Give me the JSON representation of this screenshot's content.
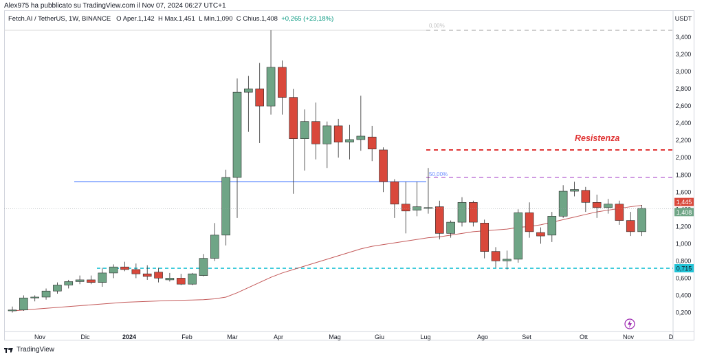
{
  "publisher_line": "Alex975 ha pubblicato su TradingView.com il Nov 07, 2024 06:27 UTC+1",
  "symbol": {
    "title": "Fetch.AI / TetherUS, 1W, BINANCE",
    "open_label": "O",
    "open": "Aper.1,142",
    "high_label": "H",
    "high": "Max.1,451",
    "low_label": "L",
    "low": "Min.1,090",
    "close_label": "C",
    "close": "Chius.1,408",
    "change": "+0,265 (+23,18%)"
  },
  "footer": {
    "brand": "TradingView"
  },
  "colors": {
    "up": "#6fa586",
    "down": "#d9483b",
    "ema": "#c45a5a",
    "hline": "#2962ff",
    "support": "#22c3d6",
    "resistance": "#e03535",
    "fib": "#c07ad8"
  },
  "chart_data": {
    "type": "candlestick",
    "currency": "USDT",
    "ylim": [
      0.1,
      3.6
    ],
    "y_ticks": [
      "3,400",
      "3,200",
      "3,000",
      "2,800",
      "2,600",
      "2,400",
      "2,200",
      "2,000",
      "1,800",
      "1,600",
      "1,400",
      "1,200",
      "1,000",
      "0,800",
      "0,600",
      "0,400",
      "0,200"
    ],
    "x_labels": [
      "Nov",
      "Dic",
      "2024",
      "Feb",
      "Mar",
      "Apr",
      "Mag",
      "Giu",
      "Lug",
      "Ago",
      "Set",
      "Ott",
      "Nov",
      "D"
    ],
    "candles": [
      {
        "o": 0.22,
        "h": 0.27,
        "l": 0.2,
        "c": 0.23
      },
      {
        "o": 0.23,
        "h": 0.4,
        "l": 0.22,
        "c": 0.37
      },
      {
        "o": 0.37,
        "h": 0.4,
        "l": 0.33,
        "c": 0.38
      },
      {
        "o": 0.38,
        "h": 0.48,
        "l": 0.35,
        "c": 0.45
      },
      {
        "o": 0.45,
        "h": 0.55,
        "l": 0.42,
        "c": 0.52
      },
      {
        "o": 0.52,
        "h": 0.58,
        "l": 0.48,
        "c": 0.56
      },
      {
        "o": 0.56,
        "h": 0.63,
        "l": 0.53,
        "c": 0.58
      },
      {
        "o": 0.58,
        "h": 0.63,
        "l": 0.53,
        "c": 0.55
      },
      {
        "o": 0.55,
        "h": 0.72,
        "l": 0.5,
        "c": 0.66
      },
      {
        "o": 0.66,
        "h": 0.76,
        "l": 0.6,
        "c": 0.73
      },
      {
        "o": 0.73,
        "h": 0.79,
        "l": 0.68,
        "c": 0.7
      },
      {
        "o": 0.7,
        "h": 0.77,
        "l": 0.6,
        "c": 0.65
      },
      {
        "o": 0.65,
        "h": 0.75,
        "l": 0.58,
        "c": 0.62
      },
      {
        "o": 0.67,
        "h": 0.72,
        "l": 0.55,
        "c": 0.6
      },
      {
        "o": 0.58,
        "h": 0.66,
        "l": 0.56,
        "c": 0.6
      },
      {
        "o": 0.6,
        "h": 0.65,
        "l": 0.52,
        "c": 0.53
      },
      {
        "o": 0.53,
        "h": 0.66,
        "l": 0.52,
        "c": 0.65
      },
      {
        "o": 0.63,
        "h": 0.88,
        "l": 0.62,
        "c": 0.83
      },
      {
        "o": 0.83,
        "h": 1.24,
        "l": 0.8,
        "c": 1.1
      },
      {
        "o": 1.1,
        "h": 1.86,
        "l": 0.98,
        "c": 1.77
      },
      {
        "o": 1.77,
        "h": 2.92,
        "l": 1.3,
        "c": 2.76
      },
      {
        "o": 2.76,
        "h": 2.95,
        "l": 2.3,
        "c": 2.8
      },
      {
        "o": 2.8,
        "h": 3.1,
        "l": 2.17,
        "c": 2.6
      },
      {
        "o": 2.6,
        "h": 3.48,
        "l": 2.5,
        "c": 3.05
      },
      {
        "o": 3.05,
        "h": 3.13,
        "l": 2.5,
        "c": 2.7
      },
      {
        "o": 2.7,
        "h": 2.8,
        "l": 1.58,
        "c": 2.22
      },
      {
        "o": 2.22,
        "h": 2.56,
        "l": 1.85,
        "c": 2.42
      },
      {
        "o": 2.42,
        "h": 2.64,
        "l": 1.98,
        "c": 2.16
      },
      {
        "o": 2.16,
        "h": 2.42,
        "l": 1.88,
        "c": 2.37
      },
      {
        "o": 2.37,
        "h": 2.45,
        "l": 2.0,
        "c": 2.18
      },
      {
        "o": 2.18,
        "h": 2.38,
        "l": 1.98,
        "c": 2.21
      },
      {
        "o": 2.21,
        "h": 2.72,
        "l": 2.08,
        "c": 2.25
      },
      {
        "o": 2.24,
        "h": 2.37,
        "l": 1.96,
        "c": 2.1
      },
      {
        "o": 2.09,
        "h": 2.12,
        "l": 1.6,
        "c": 1.72
      },
      {
        "o": 1.72,
        "h": 1.75,
        "l": 1.3,
        "c": 1.46
      },
      {
        "o": 1.46,
        "h": 1.72,
        "l": 1.12,
        "c": 1.38
      },
      {
        "o": 1.39,
        "h": 1.72,
        "l": 1.32,
        "c": 1.43
      },
      {
        "o": 1.42,
        "h": 1.88,
        "l": 1.35,
        "c": 1.42
      },
      {
        "o": 1.43,
        "h": 1.5,
        "l": 1.05,
        "c": 1.12
      },
      {
        "o": 1.12,
        "h": 1.27,
        "l": 1.07,
        "c": 1.25
      },
      {
        "o": 1.25,
        "h": 1.54,
        "l": 1.2,
        "c": 1.48
      },
      {
        "o": 1.48,
        "h": 1.5,
        "l": 1.2,
        "c": 1.25
      },
      {
        "o": 1.24,
        "h": 1.28,
        "l": 0.83,
        "c": 0.91
      },
      {
        "o": 0.91,
        "h": 0.96,
        "l": 0.72,
        "c": 0.8
      },
      {
        "o": 0.8,
        "h": 0.92,
        "l": 0.7,
        "c": 0.82
      },
      {
        "o": 0.82,
        "h": 1.4,
        "l": 0.78,
        "c": 1.36
      },
      {
        "o": 1.36,
        "h": 1.48,
        "l": 1.07,
        "c": 1.14
      },
      {
        "o": 1.13,
        "h": 1.19,
        "l": 1.0,
        "c": 1.09
      },
      {
        "o": 1.1,
        "h": 1.37,
        "l": 1.02,
        "c": 1.32
      },
      {
        "o": 1.32,
        "h": 1.68,
        "l": 1.3,
        "c": 1.61
      },
      {
        "o": 1.61,
        "h": 1.72,
        "l": 1.55,
        "c": 1.63
      },
      {
        "o": 1.62,
        "h": 1.66,
        "l": 1.37,
        "c": 1.48
      },
      {
        "o": 1.48,
        "h": 1.57,
        "l": 1.3,
        "c": 1.42
      },
      {
        "o": 1.42,
        "h": 1.52,
        "l": 1.35,
        "c": 1.46
      },
      {
        "o": 1.46,
        "h": 1.5,
        "l": 1.22,
        "c": 1.27
      },
      {
        "o": 1.27,
        "h": 1.37,
        "l": 1.09,
        "c": 1.14
      },
      {
        "o": 1.14,
        "h": 1.45,
        "l": 1.09,
        "c": 1.41
      }
    ],
    "ema": [
      0.22,
      0.23,
      0.24,
      0.25,
      0.26,
      0.27,
      0.28,
      0.29,
      0.3,
      0.31,
      0.32,
      0.325,
      0.33,
      0.335,
      0.34,
      0.343,
      0.346,
      0.35,
      0.36,
      0.38,
      0.43,
      0.49,
      0.55,
      0.61,
      0.66,
      0.7,
      0.74,
      0.78,
      0.82,
      0.86,
      0.9,
      0.94,
      0.97,
      0.99,
      1.01,
      1.03,
      1.05,
      1.07,
      1.08,
      1.1,
      1.12,
      1.14,
      1.15,
      1.16,
      1.17,
      1.19,
      1.2,
      1.22,
      1.25,
      1.28,
      1.31,
      1.34,
      1.37,
      1.39,
      1.41,
      1.43,
      1.445
    ],
    "horizontal_lines": [
      {
        "kind": "blue",
        "y": 1.72
      },
      {
        "kind": "support",
        "y": 0.715,
        "tag": "0,715"
      },
      {
        "kind": "resistance",
        "y": 2.09,
        "text": "Resistenza"
      },
      {
        "kind": "fib50",
        "y": 1.77,
        "label": "50,00%"
      },
      {
        "kind": "fib0",
        "y": 3.48,
        "label": "0,00%"
      }
    ],
    "price_tags": [
      {
        "value": 1.445,
        "label": "1,445",
        "color": "#d9483b"
      },
      {
        "value": 1.408,
        "label": "1,408",
        "color": "#6fa586"
      }
    ]
  }
}
